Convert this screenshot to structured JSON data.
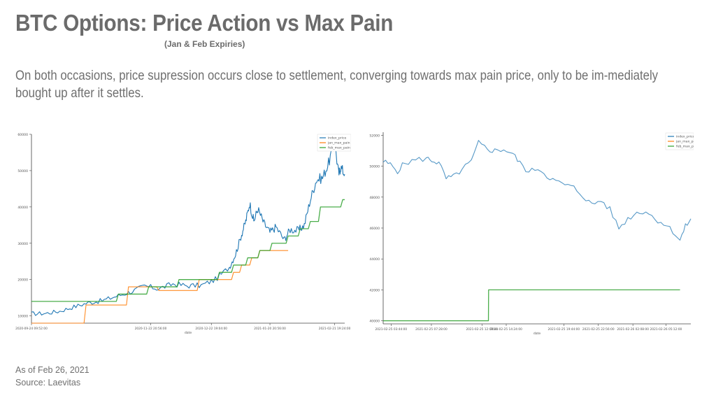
{
  "header": {
    "title": "BTC Options: Price Action vs Max Pain",
    "subtitle": "(Jan & Feb Expiries)",
    "description": "On both occasions, price supression occurs close to settlement, converging towards max pain price, only to be im-mediately bought up after it settles."
  },
  "footer": {
    "as_of": "As of Feb 26, 2021",
    "source": "Source: Laevitas"
  },
  "colors": {
    "index_price": "#1f77b4",
    "jan_max_pain": "#ff7f0e",
    "feb_max_pain": "#2ca02c"
  },
  "chart_data": [
    {
      "type": "line",
      "xlabel": "date",
      "ylabel": "",
      "x_range": [
        "2020-09-24",
        "2021-02-26"
      ],
      "ylim": [
        8000,
        60000
      ],
      "y_ticks": [
        10000,
        20000,
        30000,
        40000,
        50000,
        60000
      ],
      "x_tick_labels": [
        "2020-09-24 09:52:00",
        "2020-11-22 20:56:00",
        "2020-12-22 19:04:00",
        "2021-01-20 20:56:00",
        "2021-02-21 19:24:00"
      ],
      "x_tick_dates": [
        "2020-09-24",
        "2020-11-22",
        "2020-12-22",
        "2021-01-20",
        "2021-02-21"
      ],
      "legend_position": "top-right",
      "series": [
        {
          "name": "index_price",
          "x": [
            "2020-09-24",
            "2020-10-01",
            "2020-10-08",
            "2020-10-15",
            "2020-10-22",
            "2020-10-29",
            "2020-11-05",
            "2020-11-12",
            "2020-11-19",
            "2020-11-26",
            "2020-12-03",
            "2020-12-10",
            "2020-12-17",
            "2020-12-24",
            "2020-12-31",
            "2021-01-03",
            "2021-01-06",
            "2021-01-08",
            "2021-01-10",
            "2021-01-12",
            "2021-01-14",
            "2021-01-17",
            "2021-01-20",
            "2021-01-23",
            "2021-01-27",
            "2021-01-30",
            "2021-02-03",
            "2021-02-06",
            "2021-02-09",
            "2021-02-12",
            "2021-02-15",
            "2021-02-18",
            "2021-02-21",
            "2021-02-23",
            "2021-02-24",
            "2021-02-26"
          ],
          "values": [
            10600,
            10700,
            11300,
            12500,
            13600,
            14200,
            15400,
            16600,
            18200,
            17500,
            18800,
            18300,
            18400,
            20000,
            23500,
            27000,
            32500,
            36000,
            41000,
            36000,
            39500,
            35500,
            33000,
            34500,
            31000,
            33800,
            33500,
            35000,
            42000,
            47500,
            48000,
            52000,
            58000,
            49000,
            51000,
            49000
          ]
        },
        {
          "name": "jan_max_pain",
          "x": [
            "2020-09-24",
            "2020-10-20",
            "2020-10-21",
            "2020-11-10",
            "2020-11-11",
            "2020-11-25",
            "2020-11-26",
            "2020-12-15",
            "2020-12-16",
            "2021-01-01",
            "2021-01-02",
            "2021-01-05",
            "2021-01-06",
            "2021-01-10",
            "2021-01-11",
            "2021-01-14",
            "2021-01-15",
            "2021-01-29"
          ],
          "values": [
            8000,
            8000,
            13000,
            13000,
            18000,
            18000,
            17000,
            17000,
            20000,
            20000,
            22000,
            22000,
            24000,
            24000,
            26000,
            26000,
            28000,
            28000
          ]
        },
        {
          "name": "feb_max_pain",
          "x": [
            "2020-09-24",
            "2020-11-05",
            "2020-11-06",
            "2020-11-20",
            "2020-11-21",
            "2020-12-05",
            "2020-12-06",
            "2020-12-25",
            "2020-12-26",
            "2021-01-01",
            "2021-01-02",
            "2021-01-08",
            "2021-01-09",
            "2021-01-14",
            "2021-01-15",
            "2021-01-20",
            "2021-01-21",
            "2021-01-28",
            "2021-01-29",
            "2021-02-03",
            "2021-02-04",
            "2021-02-08",
            "2021-02-09",
            "2021-02-13",
            "2021-02-14",
            "2021-02-24",
            "2021-02-25",
            "2021-02-26"
          ],
          "values": [
            14000,
            14000,
            16000,
            16000,
            18000,
            18000,
            20000,
            20000,
            22000,
            22000,
            24000,
            24000,
            26000,
            26000,
            28000,
            28000,
            30000,
            30000,
            32000,
            32000,
            34000,
            34000,
            36000,
            36000,
            40000,
            40000,
            42000,
            42000
          ]
        }
      ]
    },
    {
      "type": "line",
      "xlabel": "date",
      "ylabel": "",
      "ylim": [
        39800,
        52200
      ],
      "y_ticks": [
        40000,
        42000,
        44000,
        46000,
        48000,
        50000,
        52000
      ],
      "x_range": [
        "2021-02-25 03:00",
        "2021-02-26 07:30"
      ],
      "x_tick_labels": [
        "2021-02-25 03:44:00",
        "2021-02-25 07:28:00",
        "2021-02-25 12:09:00",
        "2021-02-25 14:24:00",
        "2021-02-25 19:44:00",
        "2021-02-25 22:56:00",
        "2021-02-26 02:08:00",
        "2021-02-26 05:12:00"
      ],
      "x_tick_dates": [
        "2021-02-25 03:44",
        "2021-02-25 07:28",
        "2021-02-25 12:09",
        "2021-02-25 14:24",
        "2021-02-25 19:44",
        "2021-02-25 22:56",
        "2021-02-26 02:08",
        "2021-02-26 05:12"
      ],
      "legend_position": "top-right",
      "series": [
        {
          "name": "index_price",
          "x": [
            "2021-02-25 03:00",
            "2021-02-25 03:40",
            "2021-02-25 04:20",
            "2021-02-25 05:00",
            "2021-02-25 06:00",
            "2021-02-25 07:00",
            "2021-02-25 07:30",
            "2021-02-25 08:10",
            "2021-02-25 08:50",
            "2021-02-25 09:30",
            "2021-02-25 10:20",
            "2021-02-25 11:10",
            "2021-02-25 11:50",
            "2021-02-25 12:40",
            "2021-02-25 13:20",
            "2021-02-25 14:10",
            "2021-02-25 15:00",
            "2021-02-25 15:40",
            "2021-02-25 16:30",
            "2021-02-25 17:20",
            "2021-02-25 18:10",
            "2021-02-25 19:00",
            "2021-02-25 19:50",
            "2021-02-25 20:40",
            "2021-02-25 21:30",
            "2021-02-25 22:20",
            "2021-02-25 23:10",
            "2021-02-26 00:00",
            "2021-02-26 00:50",
            "2021-02-26 01:40",
            "2021-02-26 02:30",
            "2021-02-26 03:20",
            "2021-02-26 04:10",
            "2021-02-26 05:00",
            "2021-02-26 05:50",
            "2021-02-26 06:30",
            "2021-02-26 07:00",
            "2021-02-26 07:30"
          ],
          "values": [
            50300,
            50100,
            49700,
            50200,
            50400,
            50500,
            50400,
            50200,
            49200,
            49300,
            49800,
            50300,
            51500,
            51100,
            51000,
            51100,
            50800,
            50200,
            49600,
            49900,
            49400,
            49000,
            48800,
            48600,
            48100,
            47500,
            47800,
            47200,
            46000,
            46600,
            47000,
            47100,
            46600,
            46300,
            45800,
            45200,
            46100,
            46600
          ]
        },
        {
          "name": "jan_max_pain",
          "x": [],
          "values": []
        },
        {
          "name": "feb_max_pain",
          "x": [
            "2021-02-25 03:00",
            "2021-02-25 12:45",
            "2021-02-25 12:46",
            "2021-02-26 06:30"
          ],
          "values": [
            40000,
            40000,
            42000,
            42000
          ]
        }
      ]
    }
  ]
}
